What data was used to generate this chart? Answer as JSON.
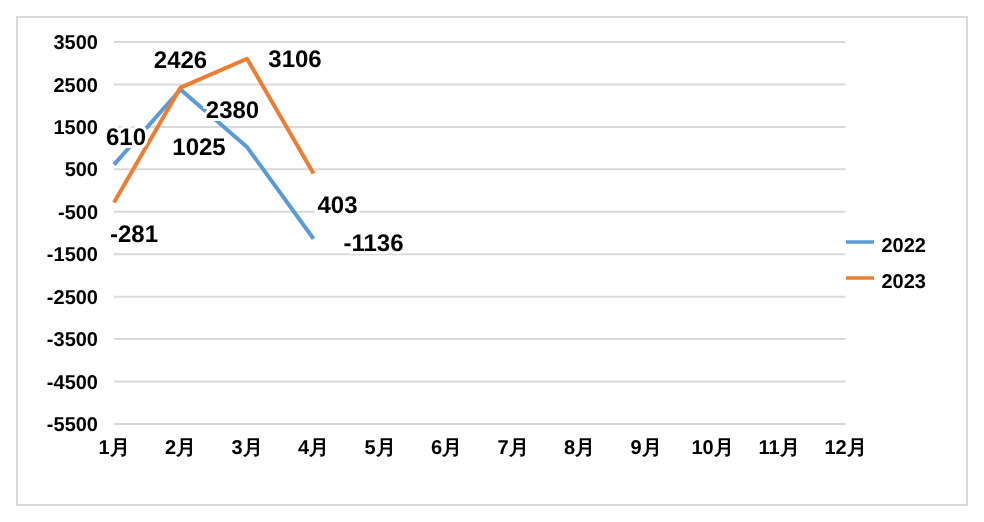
{
  "chart_data": {
    "type": "line",
    "categories": [
      "1月",
      "2月",
      "3月",
      "4月",
      "5月",
      "6月",
      "7月",
      "8月",
      "9月",
      "10月",
      "11月",
      "12月"
    ],
    "series": [
      {
        "name": "2022",
        "color": "#5b9bd5",
        "values": [
          610,
          2380,
          1025,
          -1136,
          null,
          null,
          null,
          null,
          null,
          null,
          null,
          null
        ]
      },
      {
        "name": "2023",
        "color": "#ed7d31",
        "values": [
          -281,
          2426,
          3106,
          403,
          null,
          null,
          null,
          null,
          null,
          null,
          null,
          null
        ]
      }
    ],
    "ylim": [
      -5500,
      3500
    ],
    "yticks": [
      3500,
      2500,
      1500,
      500,
      -500,
      -1500,
      -2500,
      -3500,
      -4500,
      -5500
    ],
    "grid": "y",
    "legend": "right",
    "data_labels": true,
    "marker": "none",
    "line_style": "solid"
  }
}
